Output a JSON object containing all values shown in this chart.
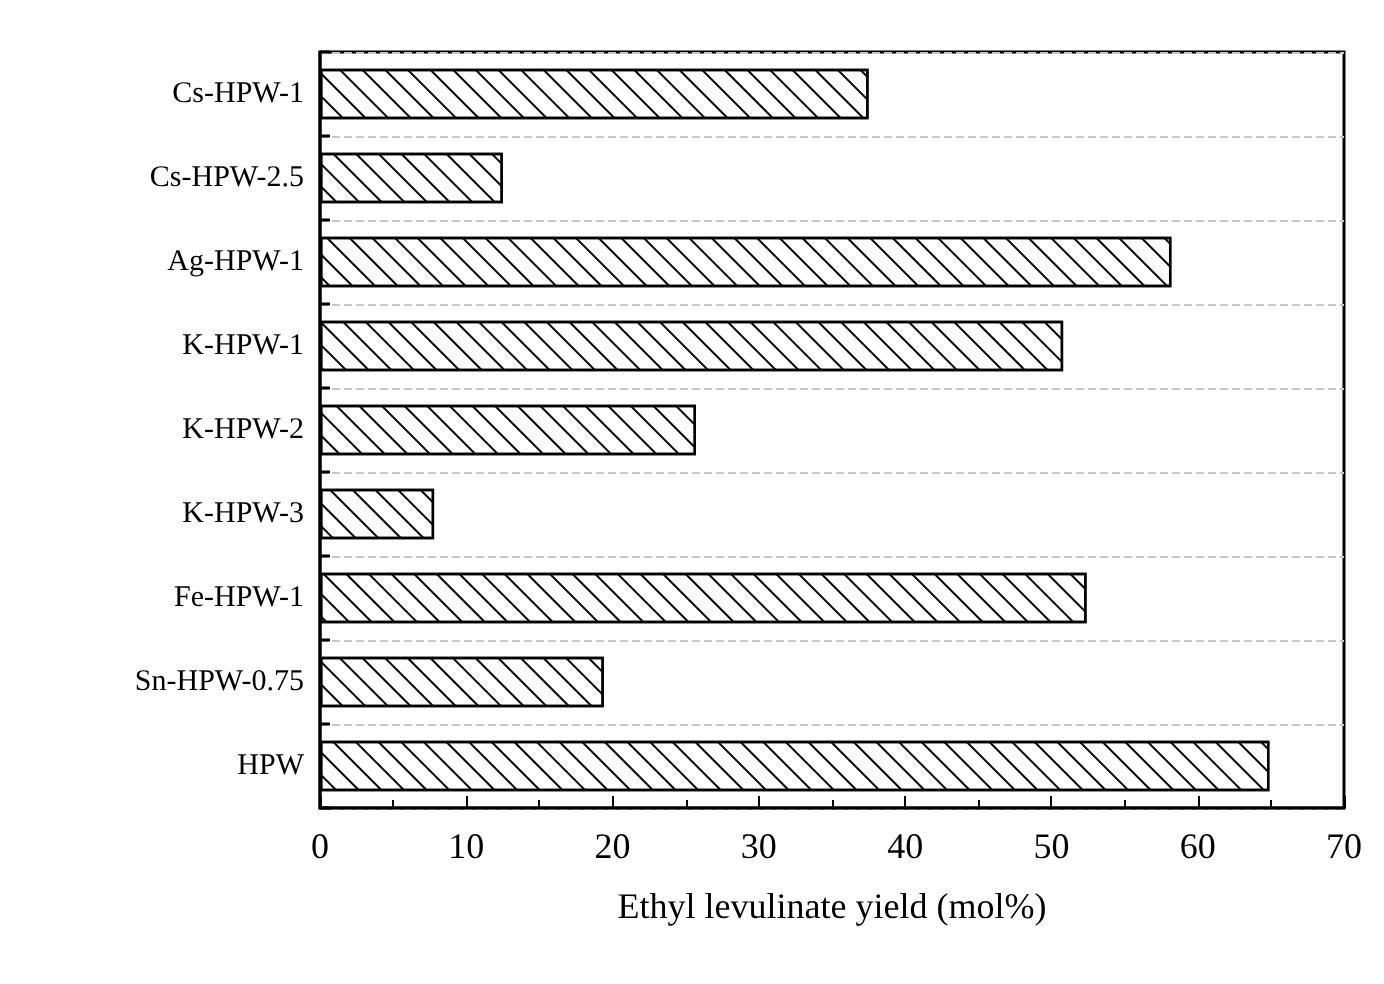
{
  "chart_data": {
    "type": "bar",
    "orientation": "horizontal",
    "xlabel": "Ethyl levulinate yield (mol%)",
    "categories": [
      "Cs-HPW-1",
      "Cs-HPW-2.5",
      "Ag-HPW-1",
      "K-HPW-1",
      "K-HPW-2",
      "K-HPW-3",
      "Fe-HPW-1",
      "Sn-HPW-0.75",
      "HPW"
    ],
    "values": [
      37.5,
      12.5,
      58.2,
      50.8,
      25.7,
      7.8,
      52.4,
      19.4,
      64.9
    ],
    "color": "#ffffff",
    "xlim": [
      0,
      70
    ],
    "xticks": [
      0,
      10,
      20,
      30,
      40,
      50,
      60,
      70
    ],
    "grid": "y"
  }
}
